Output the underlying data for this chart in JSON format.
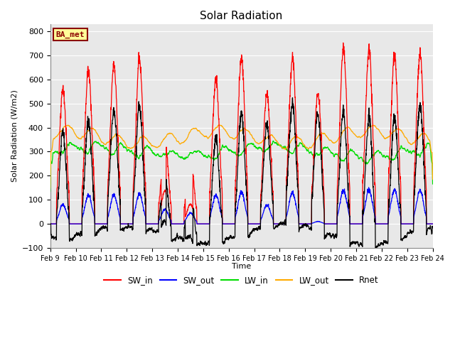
{
  "title": "Solar Radiation",
  "ylabel": "Solar Radiation (W/m2)",
  "xlabel": "Time",
  "ylim": [
    -100,
    830
  ],
  "yticks": [
    -100,
    0,
    100,
    200,
    300,
    400,
    500,
    600,
    700,
    800
  ],
  "station_label": "BA_met",
  "bg_color": "#e8e8e8",
  "fig_bg_color": "#ffffff",
  "colors": {
    "SW_in": "#ff0000",
    "SW_out": "#0000ff",
    "LW_in": "#00dd00",
    "LW_out": "#ffaa00",
    "Rnet": "#000000"
  },
  "n_days": 15,
  "start_day": 9,
  "sw_in_peaks": [
    560,
    640,
    660,
    680,
    340,
    270,
    600,
    690,
    540,
    690,
    545,
    735,
    720,
    700,
    710
  ],
  "sw_out_peaks": [
    80,
    120,
    120,
    125,
    60,
    45,
    120,
    130,
    80,
    130,
    10,
    140,
    140,
    140,
    140
  ],
  "lw_in_base": 310,
  "lw_out_base": 360,
  "night_rnet": -55
}
